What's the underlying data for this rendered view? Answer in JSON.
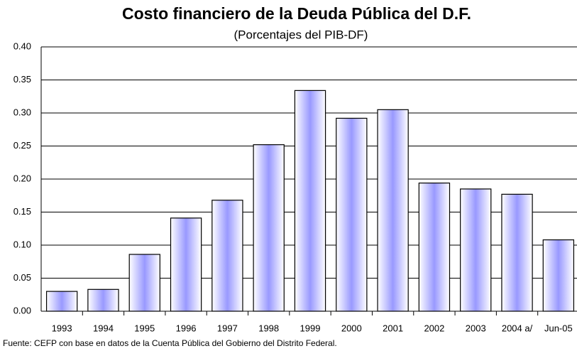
{
  "chart_data": {
    "type": "bar",
    "title": "Costo financiero de la Deuda Pública del D.F.",
    "subtitle": "(Porcentajes del PIB-DF)",
    "source": "Fuente: CEFP con base en datos de la Cuenta Pública del Gobierno del Distrito Federal.",
    "categories": [
      "1993",
      "1994",
      "1995",
      "1996",
      "1997",
      "1998",
      "1999",
      "2000",
      "2001",
      "2002",
      "2003",
      "2004 a/",
      "Jun-05"
    ],
    "values": [
      0.03,
      0.033,
      0.086,
      0.141,
      0.168,
      0.252,
      0.334,
      0.292,
      0.305,
      0.194,
      0.185,
      0.177,
      0.108
    ],
    "color": "#9999ff",
    "ylim": [
      0,
      0.4
    ],
    "yticks": [
      {
        "value": 0,
        "label": "0.00"
      },
      {
        "value": 0.05,
        "label": "0.05"
      },
      {
        "value": 0.1,
        "label": "0.10"
      },
      {
        "value": 0.15,
        "label": "0.15"
      },
      {
        "value": 0.2,
        "label": "0.20"
      },
      {
        "value": 0.25,
        "label": "0.25"
      },
      {
        "value": 0.3,
        "label": "0.30"
      },
      {
        "value": 0.35,
        "label": "0.35"
      },
      {
        "value": 0.4,
        "label": "0.40"
      }
    ],
    "grid": true
  }
}
